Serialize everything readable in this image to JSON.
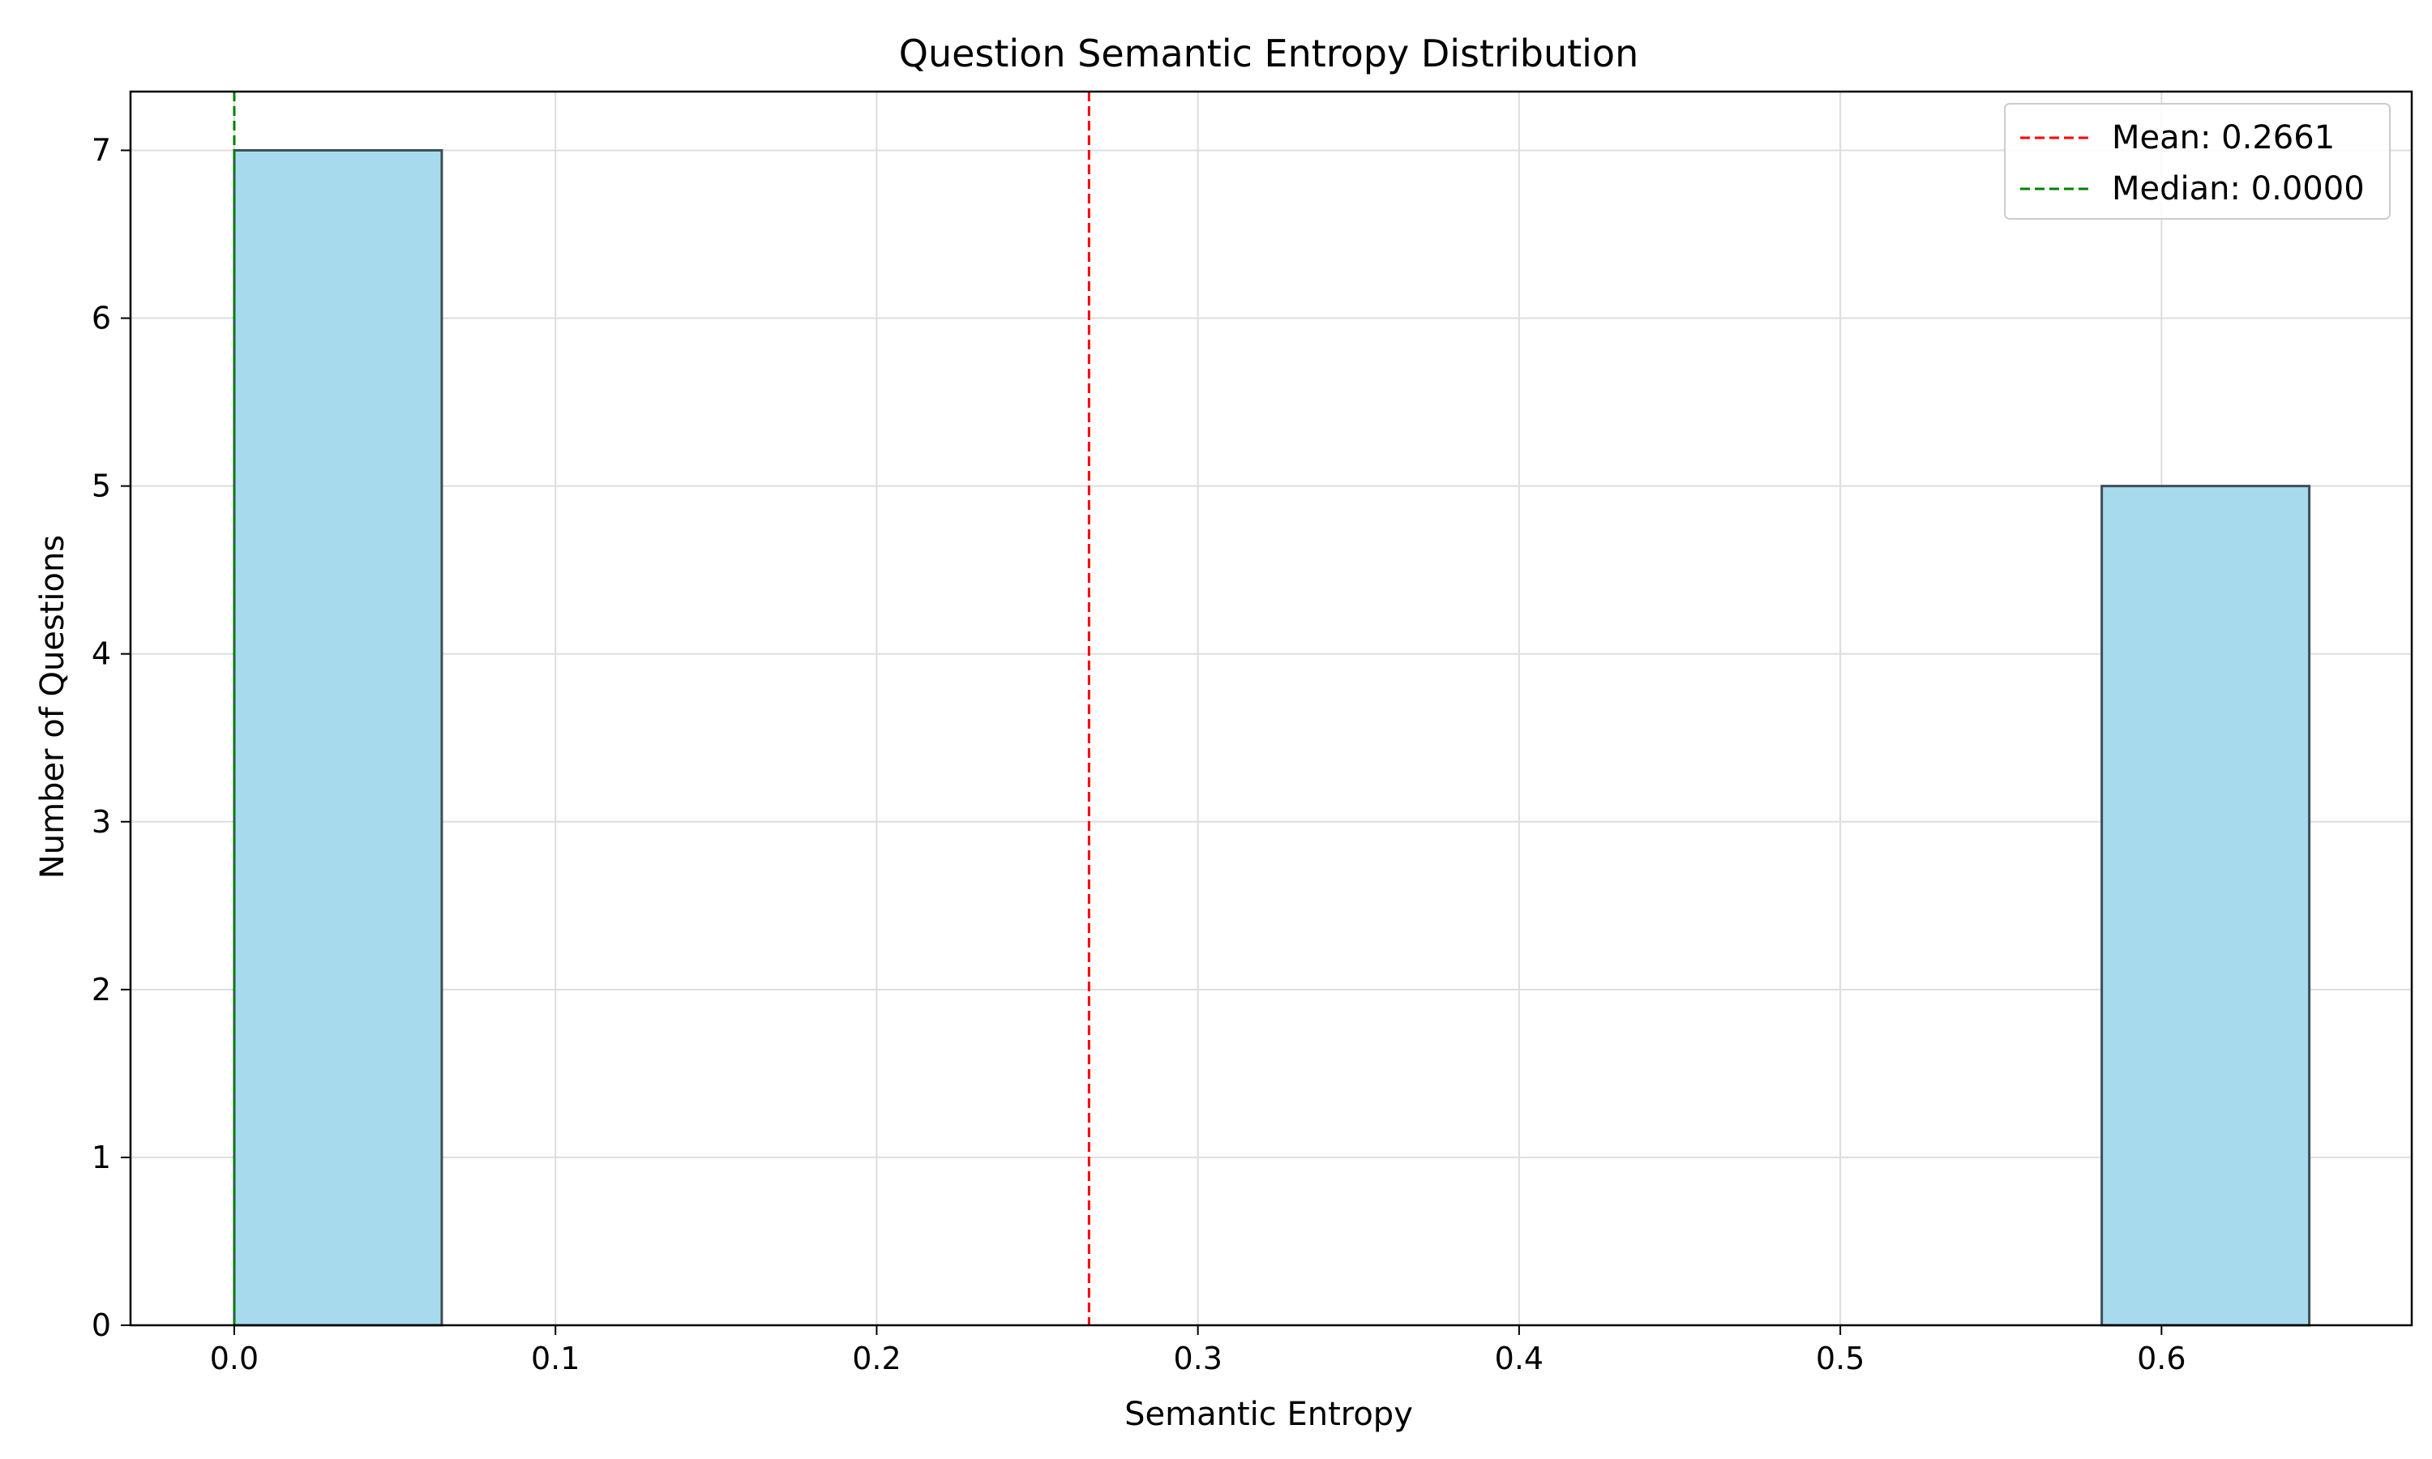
{
  "chart_data": {
    "type": "bar",
    "title": "Question Semantic Entropy Distribution",
    "xlabel": "Semantic Entropy",
    "ylabel": "Number of Questions",
    "xlim": [
      -0.0323,
      0.6779
    ],
    "ylim": [
      0,
      7.35
    ],
    "xticks": [
      0.0,
      0.1,
      0.2,
      0.3,
      0.4,
      0.5,
      0.6
    ],
    "xtick_labels": [
      "0.0",
      "0.1",
      "0.2",
      "0.3",
      "0.4",
      "0.5",
      "0.6"
    ],
    "yticks": [
      0,
      1,
      2,
      3,
      4,
      5,
      6,
      7
    ],
    "ytick_labels": [
      "0",
      "1",
      "2",
      "3",
      "4",
      "5",
      "6",
      "7"
    ],
    "grid": true,
    "bins": [
      {
        "x0": 0.0,
        "x1": 0.0646,
        "value": 7
      },
      {
        "x0": 0.0646,
        "x1": 0.1292,
        "value": 0
      },
      {
        "x0": 0.1292,
        "x1": 0.1938,
        "value": 0
      },
      {
        "x0": 0.1938,
        "x1": 0.2584,
        "value": 0
      },
      {
        "x0": 0.2584,
        "x1": 0.323,
        "value": 0
      },
      {
        "x0": 0.323,
        "x1": 0.3876,
        "value": 0
      },
      {
        "x0": 0.3876,
        "x1": 0.4522,
        "value": 0
      },
      {
        "x0": 0.4522,
        "x1": 0.5168,
        "value": 0
      },
      {
        "x0": 0.5168,
        "x1": 0.5814,
        "value": 0
      },
      {
        "x0": 0.5814,
        "x1": 0.646,
        "value": 5
      }
    ],
    "reference_lines": [
      {
        "name": "Mean: 0.2661",
        "x": 0.2661,
        "color": "#ff0000"
      },
      {
        "name": "Median: 0.0000",
        "x": 0.0,
        "color": "#008000"
      }
    ],
    "legend_position": "top-right",
    "colors": {
      "bar_fill": "#a8daed",
      "bar_edge": "#3d4e57",
      "grid": "#dddddd",
      "axis": "#000000"
    }
  }
}
